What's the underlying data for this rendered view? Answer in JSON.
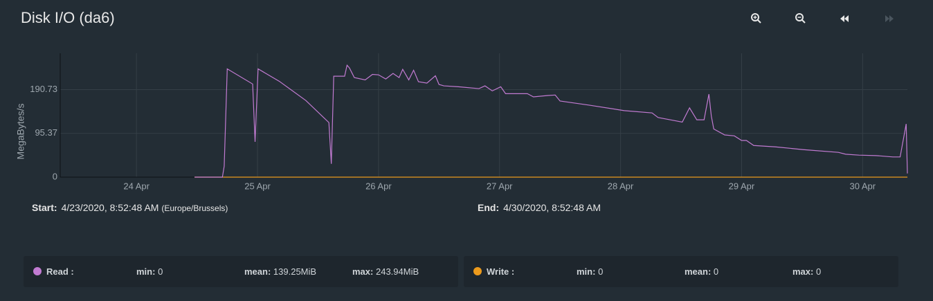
{
  "header": {
    "title": "Disk I/O (da6)"
  },
  "chart_data": {
    "type": "line",
    "y_label": "MegaBytes/s",
    "xlim": [
      23.37,
      30.37
    ],
    "xticks": [
      {
        "value": 24,
        "label": "24 Apr"
      },
      {
        "value": 25,
        "label": "25 Apr"
      },
      {
        "value": 26,
        "label": "26 Apr"
      },
      {
        "value": 27,
        "label": "27 Apr"
      },
      {
        "value": 28,
        "label": "28 Apr"
      },
      {
        "value": 29,
        "label": "29 Apr"
      },
      {
        "value": 30,
        "label": "30 Apr"
      }
    ],
    "ylim": [
      0,
      270
    ],
    "yticks": [
      0,
      95.37,
      190.73
    ],
    "grid": true,
    "series": [
      {
        "name": "Read",
        "color": "#c27bd2",
        "x": [
          24.48,
          24.71,
          24.725,
          24.75,
          24.96,
          24.98,
          25.005,
          25.18,
          25.4,
          25.59,
          25.61,
          25.63,
          25.72,
          25.74,
          25.76,
          25.8,
          25.89,
          25.95,
          26.0,
          26.06,
          26.12,
          26.17,
          26.2,
          26.25,
          26.29,
          26.33,
          26.4,
          26.47,
          26.5,
          26.54,
          26.66,
          26.83,
          26.88,
          26.94,
          27.01,
          27.05,
          27.23,
          27.28,
          27.4,
          27.46,
          27.5,
          27.74,
          28.03,
          28.26,
          28.31,
          28.45,
          28.51,
          28.57,
          28.63,
          28.69,
          28.73,
          28.75,
          28.77,
          28.86,
          28.94,
          29.0,
          29.04,
          29.1,
          29.28,
          29.51,
          29.8,
          29.86,
          29.97,
          30.11,
          30.25,
          30.31,
          30.36,
          30.37
        ],
        "values": [
          0,
          0,
          24,
          236,
          203,
          77,
          236,
          209,
          167,
          119,
          29,
          220,
          220,
          243.94,
          238,
          217,
          212,
          224,
          223,
          214,
          226,
          217,
          235,
          212,
          233,
          208,
          205,
          221,
          202,
          199,
          197,
          193,
          199,
          188,
          197,
          182,
          182,
          175,
          178,
          179,
          166,
          157,
          145,
          140,
          130,
          123,
          120,
          151,
          125,
          125,
          181,
          133,
          105,
          92,
          90,
          80,
          80,
          69,
          66,
          60,
          54,
          50,
          48,
          47,
          44,
          44,
          116,
          8
        ]
      },
      {
        "name": "Write",
        "color": "#ec9a1c",
        "x": [
          24.48,
          30.37
        ],
        "values": [
          0,
          0
        ]
      }
    ]
  },
  "range": {
    "start_label": "Start:",
    "start": "4/23/2020, 8:52:48 AM",
    "timezone": "(Europe/Brussels)",
    "end_label": "End:",
    "end": "4/30/2020, 8:52:48 AM"
  },
  "legend": [
    {
      "name": "Read :",
      "min_label": "min:",
      "min": "0",
      "mean_label": "mean:",
      "mean": "139.25MiB",
      "max_label": "max:",
      "max": "243.94MiB"
    },
    {
      "name": "Write :",
      "min_label": "min:",
      "min": "0",
      "mean_label": "mean:",
      "mean": "0",
      "max_label": "max:",
      "max": "0"
    }
  ]
}
